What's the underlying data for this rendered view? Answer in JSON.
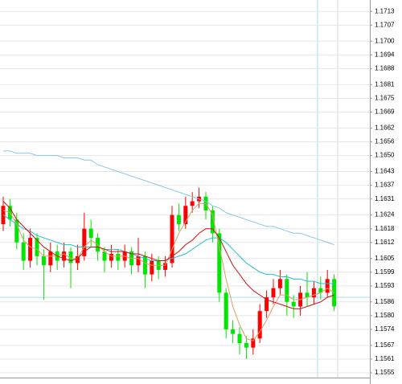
{
  "chart_data": {
    "type": "candlestick",
    "ylim": [
      1.15501,
      1.1718
    ],
    "yticks": [
      1.1713,
      1.1707,
      {
        "value": 1.17,
        "label": "1.1700"
      },
      1.1694,
      1.1688,
      1.1681,
      1.1675,
      1.1669,
      1.1662,
      1.1656,
      {
        "value": 1.165,
        "label": "1.1650"
      },
      1.1643,
      1.1637,
      1.1631,
      1.1624,
      1.1618,
      1.1612,
      1.1605,
      1.1599,
      1.1593,
      1.1586,
      {
        "value": 1.158,
        "label": "1.1580"
      },
      1.1574,
      1.1567,
      1.1561,
      1.1555
    ],
    "grid": true,
    "up_color": "#ff0000",
    "down_color": "#00e600",
    "price_line": {
      "value": 1.1588,
      "color": "#a8e0e8"
    },
    "open": [
      1.162,
      1.1628,
      1.1622,
      1.1612,
      1.1604,
      1.1614,
      1.1606,
      1.1602,
      1.1608,
      1.1604,
      1.1608,
      1.1603,
      1.1606,
      1.1618,
      1.1614,
      1.1608,
      1.1604,
      1.1607,
      1.1604,
      1.1608,
      1.1602,
      1.1606,
      1.1598,
      1.1604,
      1.16,
      1.1603,
      1.1624,
      1.162,
      1.1628,
      1.163,
      1.1632,
      1.1626,
      1.1616,
      1.159,
      1.1574,
      1.1572,
      1.1568,
      1.1566,
      1.157,
      1.1582,
      1.1588,
      1.1592,
      1.1596,
      1.1586,
      1.1584,
      1.159,
      1.1588,
      1.1592,
      1.159,
      1.1596
    ],
    "high": [
      1.1632,
      1.1631,
      1.1625,
      1.1616,
      1.1618,
      1.1616,
      1.1609,
      1.1612,
      1.1611,
      1.1612,
      1.161,
      1.1611,
      1.1625,
      1.1622,
      1.1616,
      1.161,
      1.1611,
      1.1609,
      1.1611,
      1.161,
      1.1614,
      1.1608,
      1.1607,
      1.1606,
      1.1606,
      1.1628,
      1.1629,
      1.1632,
      1.1634,
      1.1636,
      1.1634,
      1.1628,
      1.1618,
      1.1592,
      1.1578,
      1.1575,
      1.1571,
      1.1574,
      1.1585,
      1.1591,
      1.1596,
      1.16,
      1.1598,
      1.1589,
      1.1593,
      1.1599,
      1.1595,
      1.1597,
      1.16,
      1.1598
    ],
    "low": [
      1.1617,
      1.1619,
      1.1609,
      1.16,
      1.1601,
      1.1602,
      1.1587,
      1.1599,
      1.16,
      1.1601,
      1.1592,
      1.16,
      1.1604,
      1.161,
      1.1604,
      1.1599,
      1.1601,
      1.16,
      1.1601,
      1.1598,
      1.1599,
      1.1592,
      1.1595,
      1.1596,
      1.1597,
      1.1601,
      1.1617,
      1.1618,
      1.1625,
      1.1627,
      1.1622,
      1.1612,
      1.1586,
      1.157,
      1.1568,
      1.1563,
      1.1561,
      1.1563,
      1.1568,
      1.1579,
      1.1585,
      1.1589,
      1.158,
      1.1579,
      1.158,
      1.1584,
      1.1585,
      1.1587,
      1.1588,
      1.1582
    ],
    "close": [
      1.1628,
      1.1622,
      1.1612,
      1.1604,
      1.1614,
      1.1606,
      1.1602,
      1.1608,
      1.1604,
      1.1608,
      1.1603,
      1.1606,
      1.1618,
      1.1614,
      1.1608,
      1.1604,
      1.1607,
      1.1604,
      1.1608,
      1.1602,
      1.1606,
      1.1598,
      1.1604,
      1.16,
      1.1603,
      1.1624,
      1.162,
      1.1628,
      1.163,
      1.1632,
      1.1626,
      1.1616,
      1.159,
      1.1574,
      1.1572,
      1.1568,
      1.1566,
      1.157,
      1.1582,
      1.1588,
      1.1592,
      1.1596,
      1.1586,
      1.1584,
      1.159,
      1.1588,
      1.1592,
      1.159,
      1.1596,
      1.1584
    ],
    "lines": [
      {
        "color": "#87c8e8",
        "values": [
          1.1652,
          1.1652,
          1.1651,
          1.1651,
          1.1651,
          1.165,
          1.165,
          1.165,
          1.165,
          1.1649,
          1.1649,
          1.1649,
          1.1648,
          1.1648,
          1.1646,
          1.1645,
          1.1644,
          1.1643,
          1.1642,
          1.1641,
          1.164,
          1.1639,
          1.1638,
          1.1637,
          1.1636,
          1.1635,
          1.1634,
          1.1633,
          1.1632,
          1.1631,
          1.163,
          1.1628,
          1.1627,
          1.1625,
          1.1624,
          1.1623,
          1.1622,
          1.1621,
          1.162,
          1.1619,
          1.1619,
          1.1618,
          1.1617,
          1.1616,
          1.1616,
          1.1615,
          1.1614,
          1.1613,
          1.1612,
          1.1611
        ]
      },
      {
        "color": "#20c0d0",
        "values": [
          1.1624,
          1.1622,
          1.162,
          1.1618,
          1.1617,
          1.1615,
          1.1614,
          1.1613,
          1.1612,
          1.1611,
          1.1611,
          1.161,
          1.161,
          1.161,
          1.161,
          1.1609,
          1.1609,
          1.1609,
          1.1608,
          1.1607,
          1.1606,
          1.1605,
          1.1604,
          1.1604,
          1.1604,
          1.1605,
          1.1606,
          1.1607,
          1.1609,
          1.1611,
          1.1613,
          1.1614,
          1.1614,
          1.1612,
          1.1609,
          1.1606,
          1.1603,
          1.1601,
          1.1599,
          1.1598,
          1.1598,
          1.1597,
          1.1597,
          1.1596,
          1.1596,
          1.1595,
          1.1595,
          1.1594,
          1.1594,
          1.1594
        ]
      },
      {
        "color": "#d9a066",
        "values": [
          1.1626,
          1.1625,
          1.162,
          1.1613,
          1.161,
          1.1609,
          1.1606,
          1.1606,
          1.1606,
          1.1607,
          1.1605,
          1.1605,
          1.161,
          1.1613,
          1.1611,
          1.1608,
          1.1606,
          1.1606,
          1.1606,
          1.1605,
          1.1605,
          1.1603,
          1.1602,
          1.1602,
          1.1602,
          1.1609,
          1.1616,
          1.1621,
          1.1626,
          1.1629,
          1.1629,
          1.1624,
          1.161,
          1.1596,
          1.1584,
          1.1576,
          1.157,
          1.1569,
          1.1573,
          1.1578,
          1.1584,
          1.1589,
          1.1589,
          1.1587,
          1.1587,
          1.1588,
          1.1589,
          1.159,
          1.1592,
          1.159
        ]
      },
      {
        "color": "#d01010",
        "values": [
          1.163,
          1.1627,
          1.1622,
          1.1619,
          1.1616,
          1.1613,
          1.161,
          1.1608,
          1.1606,
          1.1605,
          1.1604,
          1.1605,
          1.1608,
          1.161,
          1.161,
          1.1609,
          1.1608,
          1.1608,
          1.1608,
          1.1607,
          1.1607,
          1.1606,
          1.1605,
          1.1604,
          1.1604,
          1.1606,
          1.1608,
          1.1611,
          1.1613,
          1.1616,
          1.1618,
          1.1618,
          1.1614,
          1.1608,
          1.1602,
          1.1598,
          1.1594,
          1.1591,
          1.1589,
          1.1587,
          1.1586,
          1.1585,
          1.1584,
          1.1583,
          1.1583,
          1.1584,
          1.1585,
          1.1586,
          1.1588,
          1.1589
        ]
      }
    ]
  }
}
